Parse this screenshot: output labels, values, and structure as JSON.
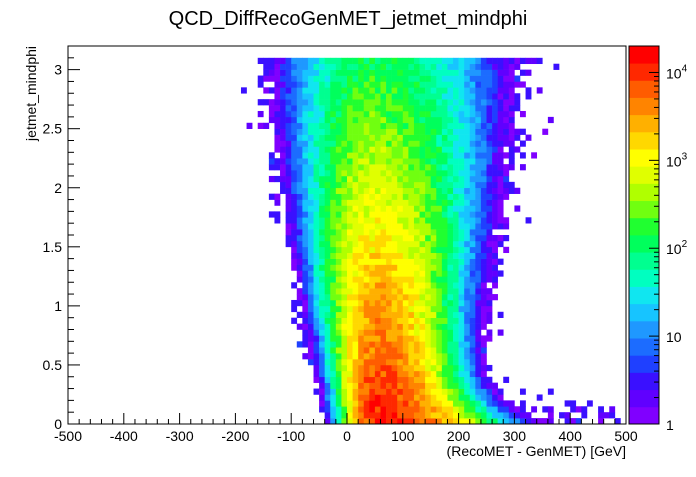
{
  "chart_data": {
    "type": "heatmap",
    "title": "QCD_DiffRecoGenMET_jetmet_mindphi",
    "xlabel": "(RecoMET - GenMET)  [GeV]",
    "ylabel": "jetmet_mindphi",
    "xlim": [
      -500,
      500
    ],
    "ylim": [
      0,
      3.2
    ],
    "x_ticks": [
      "-500",
      "-400",
      "-300",
      "-200",
      "-100",
      "0",
      "100",
      "200",
      "300",
      "400",
      "500"
    ],
    "x_tick_values": [
      -500,
      -400,
      -300,
      -200,
      -100,
      0,
      100,
      200,
      300,
      400,
      500
    ],
    "y_ticks": [
      "0",
      "0.5",
      "1",
      "1.5",
      "2",
      "2.5",
      "3"
    ],
    "y_tick_values": [
      0,
      0.5,
      1,
      1.5,
      2,
      2.5,
      3
    ],
    "colorbar": {
      "scale": "log",
      "range": [
        1,
        20000
      ],
      "tick_labels": [
        {
          "value": 1,
          "base": "1",
          "exp": ""
        },
        {
          "value": 10,
          "base": "10",
          "exp": ""
        },
        {
          "value": 100,
          "base": "10",
          "exp": "2"
        },
        {
          "value": 1000,
          "base": "10",
          "exp": "3"
        },
        {
          "value": 10000,
          "base": "10",
          "exp": "4"
        }
      ],
      "palette": [
        "#8000ff",
        "#6000ff",
        "#3a10ff",
        "#1f40ff",
        "#1c6cff",
        "#1f98ff",
        "#17c4ff",
        "#10e6f0",
        "#00ffc0",
        "#00ff90",
        "#00ff5c",
        "#20ff30",
        "#70ff10",
        "#b0ff00",
        "#e0ff00",
        "#ffff00",
        "#ffd800",
        "#ffb000",
        "#ff8400",
        "#ff5c00",
        "#ff2800",
        "#ff0000"
      ]
    },
    "grid": false,
    "legend": "none",
    "density_model": {
      "description": "2D histogram of counts; dense core near x≈60 GeV, spread to tails",
      "x_center": 60,
      "peak_count": 15000
    }
  }
}
